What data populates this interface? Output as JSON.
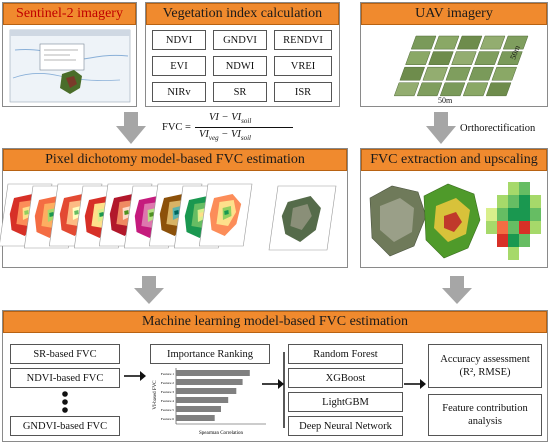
{
  "headers": {
    "sentinel": "Sentinel-2 imagery",
    "vegetation": "Vegetation index calculation",
    "uav": "UAV imagery",
    "pixel": "Pixel dichotomy model-based FVC estimation",
    "fvc_extraction": "FVC extraction and upscaling",
    "ml": "Machine learning model-based FVC estimation"
  },
  "indices": [
    "NDVI",
    "GNDVI",
    "RENDVI",
    "EVI",
    "NDWI",
    "VREI",
    "NIRv",
    "SR",
    "ISR"
  ],
  "formula": {
    "lhs": "FVC =",
    "num": "VI − VI",
    "num_sub": "soil",
    "den": "VI",
    "den_sub1": "veg",
    "den_mid": " − VI",
    "den_sub2": "soil"
  },
  "uav": {
    "dim_side": "50m",
    "dim_bottom": "50m",
    "ortho_label": "Orthorectification"
  },
  "ml": {
    "inputs": [
      "SR-based FVC",
      "NDVI-based FVC",
      "GNDVI-based FVC"
    ],
    "ranking_title": "Importance Ranking",
    "ranking_ylabel": "VI-based FVC",
    "ranking_xlabel": "Spearman Correlation",
    "ranking_features": [
      "Feature 1",
      "Feature 2",
      "Feature 3",
      "Feature 4",
      "Feature 5",
      "Feature 6"
    ],
    "ranking_values": [
      0.82,
      0.74,
      0.67,
      0.58,
      0.5,
      0.43
    ],
    "models": [
      "Random Forest",
      "XGBoost",
      "LightGBM",
      "Deep Neural Network"
    ],
    "accuracy": "Accuracy assessment",
    "accuracy_metrics": "(R², RMSE)",
    "feature_line1": "Feature contribution",
    "feature_line2": "analysis"
  },
  "colors": {
    "header_fill": "#f08a2e",
    "arrow": "#a6a6a6",
    "bar": "#808080"
  }
}
